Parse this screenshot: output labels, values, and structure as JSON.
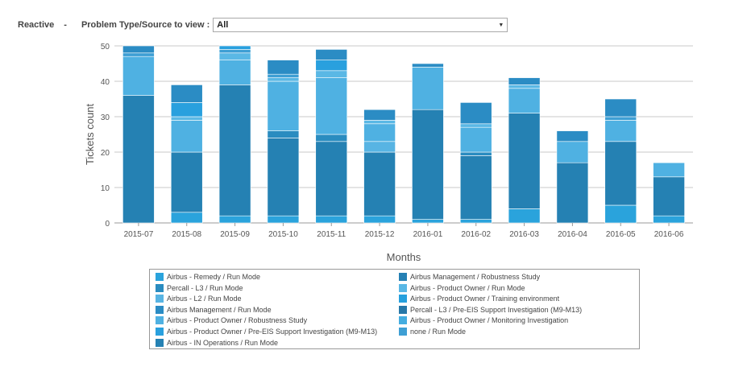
{
  "filter": {
    "mode_label": "Reactive",
    "separator": "-",
    "select_label": "Problem Type/Source to view :",
    "select_value": "All"
  },
  "chart_data": {
    "type": "bar",
    "stacked": true,
    "xlabel": "Months",
    "ylabel": "Tickets count",
    "ylim": [
      0,
      50
    ],
    "yticks": [
      0,
      10,
      20,
      30,
      40,
      50
    ],
    "grid": true,
    "legend_position": "bottom",
    "categories": [
      "2015-07",
      "2015-08",
      "2015-09",
      "2015-10",
      "2015-11",
      "2015-12",
      "2016-01",
      "2016-02",
      "2016-03",
      "2016-04",
      "2016-05",
      "2016-06"
    ],
    "series": [
      {
        "name": "Airbus - Remedy / Run Mode",
        "color": "#2aa3dc",
        "values": [
          0,
          3,
          2,
          2,
          2,
          2,
          1,
          1,
          4,
          0,
          5,
          2
        ]
      },
      {
        "name": "Airbus - IN Operations / Run Mode",
        "color": "#2581b3",
        "values": [
          36,
          17,
          37,
          22,
          21,
          18,
          31,
          18,
          27,
          17,
          18,
          11
        ]
      },
      {
        "name": "Percall - L3 / Run Mode",
        "color": "#2a8cc0",
        "values": [
          0,
          0,
          0,
          2,
          2,
          0,
          0,
          1,
          0,
          0,
          0,
          0
        ]
      },
      {
        "name": "Airbus - L2 / Run Mode",
        "color": "#58b4e3",
        "values": [
          0,
          0,
          0,
          0,
          0,
          3,
          0,
          0,
          0,
          0,
          0,
          0
        ]
      },
      {
        "name": "Airbus - Product Owner / Robustness Study",
        "color": "#4fb1e2",
        "values": [
          11,
          9,
          7,
          14,
          16,
          5,
          12,
          7,
          7,
          6,
          6,
          4
        ]
      },
      {
        "name": "Airbus - Product Owner / Run Mode",
        "color": "#5ab8e5",
        "values": [
          0,
          1,
          2,
          1,
          2,
          1,
          0,
          1,
          1,
          0,
          0,
          0
        ]
      },
      {
        "name": "none / Run Mode",
        "color": "#3e9fd4",
        "values": [
          1,
          0,
          1,
          1,
          0,
          0,
          0,
          0,
          0,
          0,
          1,
          0
        ]
      },
      {
        "name": "Airbus - Product Owner / Pre-EIS Support Investigation (M9-M13)",
        "color": "#29a0de",
        "values": [
          0,
          4,
          1,
          0,
          3,
          0,
          0,
          0,
          0,
          0,
          0,
          0
        ]
      },
      {
        "name": "Airbus Management / Run Mode",
        "color": "#2b8cc4",
        "values": [
          2,
          5,
          0,
          4,
          3,
          3,
          1,
          6,
          2,
          3,
          5,
          0
        ]
      }
    ]
  },
  "legend": [
    {
      "label": "Airbus - Remedy / Run Mode",
      "color": "#2aa3dc"
    },
    {
      "label": "Airbus Management / Robustness Study",
      "color": "#2580b4"
    },
    {
      "label": "Percall - L3 / Run Mode",
      "color": "#2a8cc0"
    },
    {
      "label": "Airbus - Product Owner / Run Mode",
      "color": "#5ab8e5"
    },
    {
      "label": "Airbus - L2 / Run Mode",
      "color": "#58b4e3"
    },
    {
      "label": "Airbus - Product Owner / Training environment",
      "color": "#26a0dd"
    },
    {
      "label": "Airbus Management / Run Mode",
      "color": "#2b8cc4"
    },
    {
      "label": "Percall - L3 / Pre-EIS Support Investigation (M9-M13)",
      "color": "#2778a8"
    },
    {
      "label": "Airbus - Product Owner / Robustness Study",
      "color": "#4fb1e2"
    },
    {
      "label": "Airbus - Product Owner / Monitoring Investigation",
      "color": "#44ade0"
    },
    {
      "label": "Airbus - Product Owner / Pre-EIS Support Investigation (M9-M13)",
      "color": "#29a0de"
    },
    {
      "label": "none / Run Mode",
      "color": "#3e9fd4"
    },
    {
      "label": "Airbus - IN Operations / Run Mode",
      "color": "#2581b3"
    }
  ]
}
